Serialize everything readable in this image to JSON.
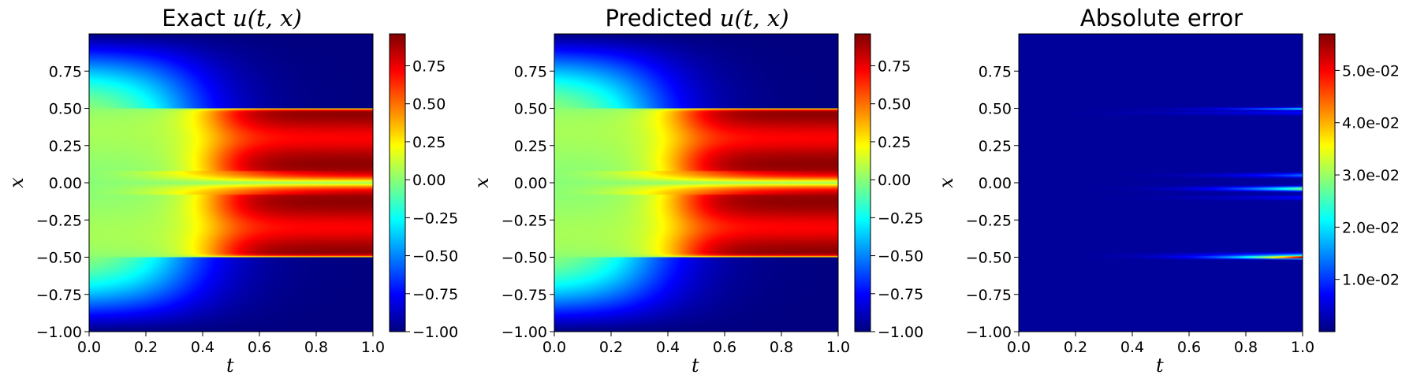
{
  "chart_data": [
    {
      "type": "heatmap",
      "title_prefix": "Exact ",
      "title_math": "u(t, x)",
      "xlabel": "t",
      "ylabel": "x",
      "xlim": [
        0.0,
        1.0
      ],
      "ylim": [
        -1.0,
        1.0
      ],
      "xticks": [
        "0.0",
        "0.2",
        "0.4",
        "0.6",
        "0.8",
        "1.0"
      ],
      "yticks": [
        "−1.00",
        "−0.75",
        "−0.50",
        "−0.25",
        "0.00",
        "0.25",
        "0.50",
        "0.75"
      ],
      "colorbar": {
        "colormap": "jet",
        "range": [
          -1.0,
          0.96
        ],
        "ticks": [
          "−1.00",
          "−0.75",
          "−0.50",
          "−0.25",
          "0.00",
          "0.25",
          "0.50",
          "0.75"
        ]
      },
      "field": "allen-cahn"
    },
    {
      "type": "heatmap",
      "title_prefix": "Predicted ",
      "title_math": "u(t, x)",
      "xlabel": "t",
      "ylabel": "x",
      "xlim": [
        0.0,
        1.0
      ],
      "ylim": [
        -1.0,
        1.0
      ],
      "xticks": [
        "0.0",
        "0.2",
        "0.4",
        "0.6",
        "0.8",
        "1.0"
      ],
      "yticks": [
        "−1.00",
        "−0.75",
        "−0.50",
        "−0.25",
        "0.00",
        "0.25",
        "0.50",
        "0.75"
      ],
      "colorbar": {
        "colormap": "jet",
        "range": [
          -1.0,
          0.96
        ],
        "ticks": [
          "−1.00",
          "−0.75",
          "−0.50",
          "−0.25",
          "0.00",
          "0.25",
          "0.50",
          "0.75"
        ]
      },
      "field": "allen-cahn"
    },
    {
      "type": "heatmap",
      "title_prefix": "Absolute error",
      "title_math": "",
      "xlabel": "t",
      "ylabel": "x",
      "xlim": [
        0.0,
        1.0
      ],
      "ylim": [
        -1.0,
        1.0
      ],
      "xticks": [
        "0.0",
        "0.2",
        "0.4",
        "0.6",
        "0.8",
        "1.0"
      ],
      "yticks": [
        "−1.00",
        "−0.75",
        "−0.50",
        "−0.25",
        "0.00",
        "0.25",
        "0.50",
        "0.75"
      ],
      "colorbar": {
        "colormap": "jet",
        "range": [
          0.0,
          0.057
        ],
        "ticks": [
          "1.0e-02",
          "2.0e-02",
          "3.0e-02",
          "4.0e-02",
          "5.0e-02"
        ]
      },
      "field": "error"
    }
  ]
}
